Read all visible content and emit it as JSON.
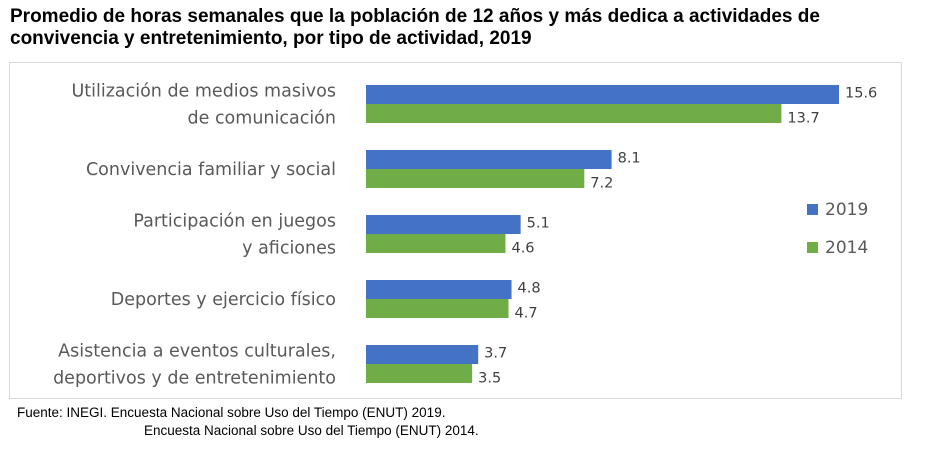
{
  "title": "Promedio de horas semanales que la población de 12 años y más dedica a actividades de convivencia y entretenimiento, por tipo de actividad, 2019",
  "source": {
    "line1": "Fuente: INEGI. Encuesta Nacional sobre Uso del Tiempo (ENUT) 2019.",
    "line2": "Encuesta Nacional sobre Uso del Tiempo (ENUT) 2014."
  },
  "chart_data": {
    "type": "bar",
    "orientation": "horizontal",
    "categories": [
      [
        "Utilización de medios masivos",
        "de comunicación"
      ],
      [
        "Convivencia familiar y social"
      ],
      [
        "Participación en juegos",
        "y aficiones"
      ],
      [
        "Deportes y ejercicio físico"
      ],
      [
        "Asistencia a eventos culturales,",
        "deportivos y de entretenimiento"
      ]
    ],
    "series": [
      {
        "name": "2019",
        "color": "#4472c4",
        "values": [
          15.6,
          8.1,
          5.1,
          4.8,
          3.7
        ]
      },
      {
        "name": "2014",
        "color": "#70ad47",
        "values": [
          13.7,
          7.2,
          4.6,
          4.7,
          3.5
        ]
      }
    ],
    "xlim": [
      0,
      15.6
    ],
    "grid": false,
    "legend": "right",
    "data_labels": true
  }
}
